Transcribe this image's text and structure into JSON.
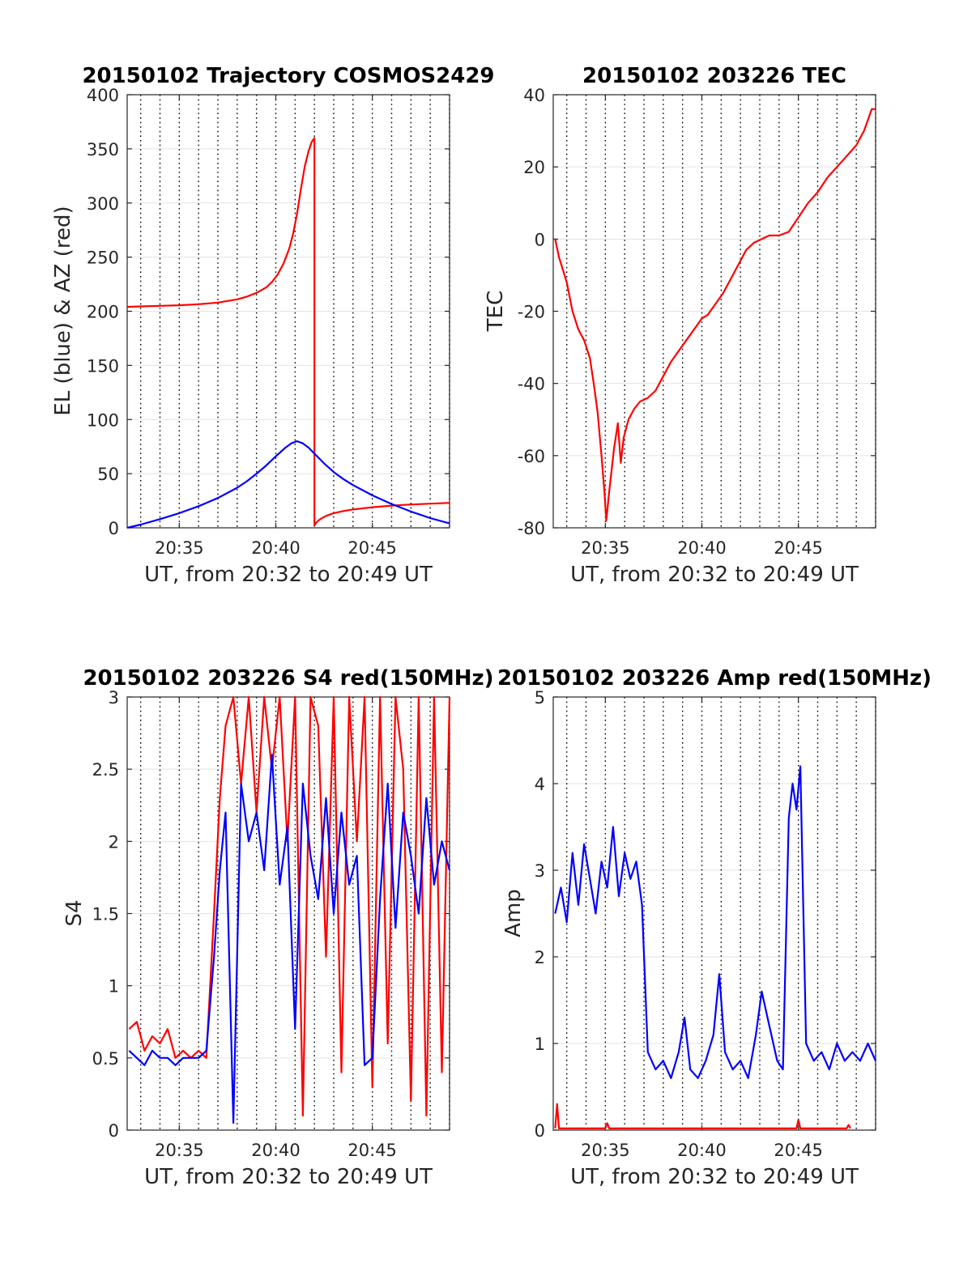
{
  "chart_data": [
    {
      "type": "line",
      "title": "20150102 Trajectory COSMOS2429",
      "xlabel": "UT, from 20:32 to 20:49 UT",
      "ylabel": "EL (blue) & AZ (red)",
      "xlim": [
        32.3,
        49.0
      ],
      "ylim": [
        0,
        400
      ],
      "xticks": [
        35,
        40,
        45
      ],
      "xtick_labels": [
        "20:35",
        "20:40",
        "20:45"
      ],
      "yticks": [
        0,
        50,
        100,
        150,
        200,
        250,
        300,
        350,
        400
      ],
      "ytick_labels": [
        "0",
        "50",
        "100",
        "150",
        "200",
        "250",
        "300",
        "350",
        "400"
      ],
      "grid": true,
      "series": [
        {
          "color": "#ff0000",
          "x": [
            32.3,
            33,
            34,
            35,
            36,
            37,
            38,
            38.5,
            39,
            39.5,
            39.8,
            40.1,
            40.4,
            40.7,
            40.9,
            41.1,
            41.3,
            41.5,
            41.7,
            41.85,
            42.0,
            42.0,
            42.1,
            42.3,
            42.6,
            43.0,
            43.5,
            44,
            45,
            46,
            47,
            48,
            49
          ],
          "y": [
            204,
            204.5,
            205,
            205.5,
            206.5,
            208,
            211,
            213.5,
            217,
            222,
            227,
            234,
            244,
            258,
            272,
            290,
            313,
            334,
            348,
            356,
            360,
            2,
            5,
            8,
            11,
            13.5,
            15.5,
            17,
            19,
            20.5,
            21.5,
            22.3,
            23
          ]
        },
        {
          "color": "#0000ff",
          "x": [
            32.3,
            33,
            34,
            35,
            36,
            37,
            38,
            38.5,
            39,
            39.5,
            40,
            40.5,
            40.8,
            41.1,
            41.4,
            41.7,
            42,
            42.5,
            43,
            43.5,
            44,
            45,
            46,
            47,
            48,
            49
          ],
          "y": [
            0,
            3,
            8,
            13.5,
            20,
            27.5,
            37,
            43,
            50,
            57.5,
            66,
            74,
            78,
            80,
            78,
            74,
            68.5,
            59.5,
            51.5,
            45,
            39.5,
            30,
            22,
            15,
            9,
            4
          ]
        }
      ]
    },
    {
      "type": "line",
      "title": "20150102 203226 TEC",
      "xlabel": "UT, from 20:32 to 20:49 UT",
      "ylabel": "TEC",
      "xlim": [
        32.3,
        49.0
      ],
      "ylim": [
        -80,
        40
      ],
      "xticks": [
        35,
        40,
        45
      ],
      "xtick_labels": [
        "20:35",
        "20:40",
        "20:45"
      ],
      "yticks": [
        -80,
        -60,
        -40,
        -20,
        0,
        20,
        40
      ],
      "ytick_labels": [
        "-80",
        "-60",
        "-40",
        "-20",
        "0",
        "20",
        "40"
      ],
      "grid": true,
      "series": [
        {
          "color": "#ff0000",
          "x": [
            32.4,
            32.6,
            33.0,
            33.3,
            33.6,
            33.9,
            34.2,
            34.4,
            34.6,
            34.8,
            34.95,
            35.05,
            35.2,
            35.45,
            35.65,
            35.8,
            35.95,
            36.2,
            36.5,
            36.8,
            37.2,
            37.6,
            38.0,
            38.4,
            38.8,
            39.2,
            39.6,
            40.0,
            40.3,
            40.7,
            41.1,
            41.5,
            41.9,
            42.3,
            42.7,
            43.1,
            43.5,
            44.0,
            44.5,
            45.0,
            45.5,
            46.0,
            46.5,
            47.0,
            47.5,
            48.0,
            48.4,
            48.6,
            48.8,
            49.0
          ],
          "y": [
            0,
            -5,
            -12,
            -20,
            -25,
            -28,
            -33,
            -40,
            -48,
            -60,
            -70,
            -78,
            -70,
            -58,
            -51,
            -62,
            -55,
            -50,
            -47,
            -45,
            -44,
            -42,
            -38,
            -34,
            -31,
            -28,
            -25,
            -22,
            -21,
            -18,
            -15,
            -11,
            -7,
            -3,
            -1,
            0,
            1,
            1,
            2,
            6,
            10,
            13,
            17,
            20,
            23,
            26,
            30,
            33,
            36,
            36
          ]
        }
      ]
    },
    {
      "type": "line",
      "title": "20150102 203226 S4 red(150MHz)",
      "xlabel": "UT, from 20:32 to 20:49 UT",
      "ylabel": "S4",
      "xlim": [
        32.3,
        49.0
      ],
      "ylim": [
        0,
        3
      ],
      "xticks": [
        35,
        40,
        45
      ],
      "xtick_labels": [
        "20:35",
        "20:40",
        "20:45"
      ],
      "yticks": [
        0,
        0.5,
        1,
        1.5,
        2,
        2.5,
        3
      ],
      "ytick_labels": [
        "0",
        "0.5",
        "1",
        "1.5",
        "2",
        "2.5",
        "3"
      ],
      "grid": true,
      "series": [
        {
          "color": "#ff0000",
          "x": [
            32.4,
            32.8,
            33.2,
            33.6,
            34.0,
            34.4,
            34.8,
            35.2,
            35.6,
            36.0,
            36.4,
            36.8,
            37.1,
            37.4,
            37.8,
            38.2,
            38.6,
            39.0,
            39.4,
            39.8,
            40.2,
            40.6,
            41.0,
            41.4,
            41.8,
            42.2,
            42.6,
            43.0,
            43.4,
            43.8,
            44.2,
            44.6,
            45.0,
            45.4,
            45.8,
            46.2,
            46.6,
            47.0,
            47.4,
            47.8,
            48.2,
            48.6,
            49.0
          ],
          "y": [
            0.7,
            0.75,
            0.55,
            0.65,
            0.6,
            0.7,
            0.5,
            0.55,
            0.5,
            0.55,
            0.5,
            1.5,
            2.3,
            2.8,
            3.0,
            2.4,
            3.0,
            2.2,
            3.0,
            2.5,
            3.0,
            2.0,
            3.0,
            0.1,
            3.0,
            2.8,
            1.2,
            3.0,
            0.4,
            3.0,
            2.0,
            3.0,
            0.3,
            3.0,
            0.6,
            3.0,
            2.5,
            0.2,
            3.0,
            0.1,
            3.0,
            0.4,
            3.0
          ]
        },
        {
          "color": "#0000ff",
          "x": [
            32.4,
            32.8,
            33.2,
            33.6,
            34.0,
            34.4,
            34.8,
            35.2,
            35.6,
            36.0,
            36.4,
            36.8,
            37.1,
            37.4,
            37.8,
            38.2,
            38.6,
            39.0,
            39.4,
            39.8,
            40.2,
            40.6,
            41.0,
            41.4,
            41.8,
            42.2,
            42.6,
            43.0,
            43.4,
            43.8,
            44.2,
            44.6,
            45.0,
            45.4,
            45.8,
            46.2,
            46.6,
            47.0,
            47.4,
            47.8,
            48.2,
            48.6,
            49.0
          ],
          "y": [
            0.55,
            0.5,
            0.45,
            0.55,
            0.5,
            0.5,
            0.45,
            0.5,
            0.5,
            0.5,
            0.55,
            1.2,
            1.8,
            2.2,
            0.05,
            2.4,
            2.0,
            2.2,
            1.8,
            2.6,
            1.7,
            2.1,
            0.7,
            2.4,
            1.9,
            1.6,
            2.3,
            1.5,
            2.2,
            1.7,
            1.9,
            0.45,
            0.5,
            1.6,
            2.4,
            1.4,
            2.2,
            1.9,
            1.5,
            2.3,
            1.7,
            2.0,
            1.8
          ]
        }
      ]
    },
    {
      "type": "line",
      "title": "20150102 203226 Amp red(150MHz)",
      "xlabel": "UT, from 20:32 to 20:49 UT",
      "ylabel": "Amp",
      "xlim": [
        32.3,
        49.0
      ],
      "ylim": [
        0,
        5
      ],
      "xticks": [
        35,
        40,
        45
      ],
      "xtick_labels": [
        "20:35",
        "20:40",
        "20:45"
      ],
      "yticks": [
        0,
        1,
        2,
        3,
        4,
        5
      ],
      "ytick_labels": [
        "0",
        "1",
        "2",
        "3",
        "4",
        "5"
      ],
      "grid": true,
      "series": [
        {
          "color": "#0000ff",
          "x": [
            32.4,
            32.7,
            33.0,
            33.3,
            33.6,
            33.9,
            34.2,
            34.5,
            34.8,
            35.1,
            35.4,
            35.7,
            36.0,
            36.3,
            36.6,
            36.9,
            37.2,
            37.6,
            38.0,
            38.4,
            38.8,
            39.1,
            39.4,
            39.8,
            40.2,
            40.6,
            40.9,
            41.2,
            41.6,
            42.0,
            42.4,
            42.8,
            43.1,
            43.5,
            43.9,
            44.2,
            44.5,
            44.7,
            44.9,
            45.1,
            45.4,
            45.8,
            46.2,
            46.6,
            47.0,
            47.4,
            47.8,
            48.2,
            48.6,
            49.0
          ],
          "y": [
            2.5,
            2.8,
            2.4,
            3.2,
            2.6,
            3.3,
            2.9,
            2.5,
            3.1,
            2.8,
            3.5,
            2.7,
            3.2,
            2.9,
            3.1,
            2.6,
            0.9,
            0.7,
            0.8,
            0.6,
            0.9,
            1.3,
            0.7,
            0.6,
            0.8,
            1.1,
            1.8,
            0.9,
            0.7,
            0.8,
            0.6,
            1.1,
            1.6,
            1.2,
            0.8,
            0.7,
            3.6,
            4.0,
            3.7,
            4.2,
            1.0,
            0.8,
            0.9,
            0.7,
            1.0,
            0.8,
            0.9,
            0.8,
            1.0,
            0.8
          ]
        },
        {
          "color": "#ff0000",
          "x": [
            32.4,
            32.5,
            32.6,
            35.0,
            35.1,
            35.2,
            44.9,
            45.0,
            45.1,
            47.5,
            47.6,
            47.7
          ],
          "y": [
            0.02,
            0.3,
            0.02,
            0.02,
            0.08,
            0.02,
            0.02,
            0.12,
            0.02,
            0.02,
            0.06,
            0.02
          ]
        }
      ]
    }
  ]
}
